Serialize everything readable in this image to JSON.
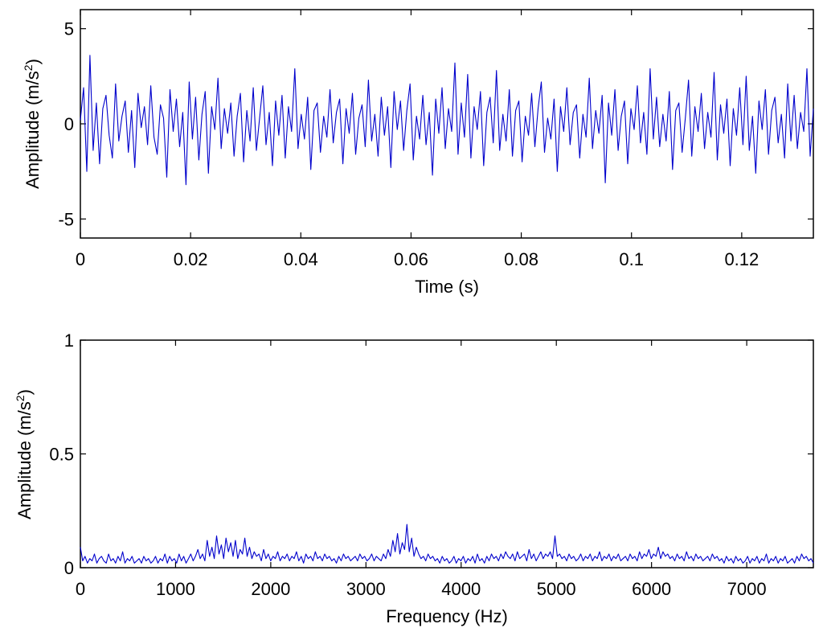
{
  "chart_data": [
    {
      "type": "line",
      "xlabel": "Time (s)",
      "ylabel": "Amplitude (m/s",
      "ylabel_sup": "2",
      "ylabel_end": ")",
      "xlim": [
        0,
        0.133
      ],
      "ylim": [
        -6,
        6
      ],
      "x_ticks": [
        0,
        0.02,
        0.04,
        0.06,
        0.08,
        0.1,
        0.12
      ],
      "x_tick_labels": [
        "0",
        "0.02",
        "0.04",
        "0.06",
        "0.08",
        "0.1",
        "0.12"
      ],
      "y_ticks": [
        -5,
        0,
        5
      ],
      "y_tick_labels": [
        "-5",
        "0",
        "5"
      ],
      "grid": false,
      "color": "#0000cc",
      "series": [
        {
          "x_start": 0,
          "x_end": 0.133,
          "values": [
            0.2,
            1.9,
            -2.5,
            3.6,
            -1.4,
            1.1,
            -2.1,
            0.8,
            1.5,
            -0.6,
            -1.8,
            2.1,
            -0.9,
            0.4,
            1.2,
            -1.5,
            0.7,
            -2.3,
            1.6,
            -0.2,
            0.9,
            -1.1,
            2.0,
            -0.7,
            -1.6,
            1.0,
            0.3,
            -2.8,
            1.8,
            -0.4,
            1.3,
            -1.2,
            0.6,
            -3.2,
            2.2,
            -0.8,
            1.4,
            -1.9,
            0.5,
            1.7,
            -2.6,
            0.9,
            -0.3,
            2.4,
            -1.3,
            0.8,
            -0.5,
            1.1,
            -1.7,
            0.4,
            1.6,
            -2.0,
            0.7,
            -0.9,
            1.9,
            -1.4,
            0.3,
            2.0,
            -1.1,
            0.6,
            -2.2,
            1.2,
            -0.6,
            1.5,
            -1.8,
            0.9,
            -0.4,
            2.9,
            -1.3,
            0.5,
            -0.8,
            1.4,
            -2.4,
            0.7,
            1.1,
            -1.5,
            0.4,
            -0.7,
            1.8,
            -1.0,
            0.6,
            1.3,
            -2.1,
            0.8,
            -0.5,
            1.6,
            -1.6,
            0.3,
            1.0,
            -1.2,
            2.3,
            -0.9,
            0.5,
            -1.7,
            1.4,
            -0.6,
            0.9,
            -2.3,
            1.7,
            -0.3,
            1.2,
            -1.4,
            0.7,
            2.1,
            -1.9,
            0.4,
            -0.8,
            1.5,
            -1.1,
            0.6,
            -2.7,
            1.3,
            -0.5,
            1.9,
            -1.3,
            0.8,
            -0.4,
            3.2,
            -1.6,
            1.1,
            -0.7,
            2.6,
            -1.8,
            0.9,
            -0.3,
            1.7,
            -2.2,
            0.6,
            1.4,
            -1.0,
            2.8,
            -1.4,
            0.5,
            -0.9,
            1.8,
            -1.7,
            0.7,
            1.2,
            -2.0,
            0.4,
            -0.6,
            1.6,
            -1.2,
            0.8,
            2.2,
            -1.5,
            0.3,
            -0.8,
            1.3,
            -2.5,
            0.9,
            -0.4,
            1.9,
            -1.1,
            0.6,
            1.0,
            -1.8,
            0.5,
            -0.7,
            2.4,
            -1.3,
            0.7,
            -0.5,
            1.5,
            -3.1,
            1.1,
            -0.6,
            1.8,
            -1.4,
            0.4,
            1.2,
            -2.1,
            0.8,
            -0.3,
            2.0,
            -1.0,
            0.6,
            -1.6,
            2.9,
            -0.8,
            1.4,
            -1.2,
            0.5,
            -0.9,
            1.7,
            -2.4,
            0.7,
            1.1,
            -1.5,
            0.3,
            2.3,
            -1.7,
            0.9,
            -0.4,
            1.6,
            -1.3,
            0.6,
            -0.7,
            2.7,
            -1.9,
            1.0,
            -0.5,
            1.3,
            -2.2,
            0.8,
            -0.6,
            1.9,
            -1.1,
            2.5,
            -1.4,
            0.4,
            -2.6,
            1.2,
            -0.3,
            1.8,
            -1.6,
            0.7,
            1.4,
            -1.0,
            0.5,
            -1.8,
            2.1,
            -0.9,
            1.5,
            -1.3,
            0.6,
            -0.4,
            2.9,
            -1.7,
            0.8
          ]
        }
      ]
    },
    {
      "type": "line",
      "xlabel": "Frequency (Hz)",
      "ylabel": "Amplitude (m/s",
      "ylabel_sup": "2",
      "ylabel_end": ")",
      "xlim": [
        0,
        7700
      ],
      "ylim": [
        0,
        1
      ],
      "x_ticks": [
        0,
        1000,
        2000,
        3000,
        4000,
        5000,
        6000,
        7000
      ],
      "x_tick_labels": [
        "0",
        "1000",
        "2000",
        "3000",
        "4000",
        "5000",
        "6000",
        "7000"
      ],
      "y_ticks": [
        0,
        0.5,
        1
      ],
      "y_tick_labels": [
        "0",
        "0.5",
        "1"
      ],
      "grid": false,
      "color": "#0000cc",
      "series": [
        {
          "x_start": 0,
          "x_end": 7700,
          "values": [
            0.09,
            0.03,
            0.05,
            0.02,
            0.04,
            0.03,
            0.06,
            0.02,
            0.04,
            0.05,
            0.03,
            0.02,
            0.06,
            0.03,
            0.04,
            0.02,
            0.05,
            0.03,
            0.07,
            0.02,
            0.04,
            0.03,
            0.05,
            0.02,
            0.03,
            0.04,
            0.02,
            0.05,
            0.03,
            0.04,
            0.02,
            0.03,
            0.05,
            0.02,
            0.04,
            0.03,
            0.06,
            0.02,
            0.05,
            0.03,
            0.04,
            0.02,
            0.06,
            0.03,
            0.05,
            0.02,
            0.04,
            0.06,
            0.03,
            0.05,
            0.08,
            0.04,
            0.06,
            0.03,
            0.12,
            0.05,
            0.09,
            0.04,
            0.14,
            0.06,
            0.1,
            0.04,
            0.13,
            0.07,
            0.11,
            0.05,
            0.12,
            0.04,
            0.08,
            0.06,
            0.13,
            0.05,
            0.09,
            0.04,
            0.07,
            0.05,
            0.06,
            0.03,
            0.08,
            0.04,
            0.06,
            0.03,
            0.05,
            0.04,
            0.07,
            0.03,
            0.05,
            0.04,
            0.06,
            0.03,
            0.05,
            0.04,
            0.07,
            0.03,
            0.05,
            0.02,
            0.06,
            0.04,
            0.05,
            0.03,
            0.07,
            0.04,
            0.05,
            0.03,
            0.06,
            0.04,
            0.05,
            0.03,
            0.04,
            0.02,
            0.05,
            0.03,
            0.06,
            0.04,
            0.05,
            0.03,
            0.04,
            0.05,
            0.03,
            0.06,
            0.04,
            0.05,
            0.03,
            0.04,
            0.06,
            0.03,
            0.05,
            0.04,
            0.03,
            0.06,
            0.04,
            0.08,
            0.05,
            0.12,
            0.07,
            0.15,
            0.06,
            0.11,
            0.08,
            0.19,
            0.07,
            0.13,
            0.05,
            0.09,
            0.06,
            0.04,
            0.05,
            0.03,
            0.06,
            0.04,
            0.05,
            0.03,
            0.04,
            0.02,
            0.05,
            0.03,
            0.04,
            0.02,
            0.03,
            0.05,
            0.02,
            0.04,
            0.03,
            0.05,
            0.02,
            0.04,
            0.03,
            0.05,
            0.02,
            0.06,
            0.03,
            0.04,
            0.02,
            0.05,
            0.03,
            0.06,
            0.04,
            0.05,
            0.03,
            0.06,
            0.04,
            0.07,
            0.05,
            0.04,
            0.06,
            0.03,
            0.07,
            0.04,
            0.05,
            0.06,
            0.03,
            0.08,
            0.04,
            0.06,
            0.03,
            0.05,
            0.07,
            0.04,
            0.06,
            0.05,
            0.07,
            0.04,
            0.14,
            0.05,
            0.06,
            0.04,
            0.05,
            0.03,
            0.06,
            0.04,
            0.05,
            0.03,
            0.04,
            0.06,
            0.03,
            0.05,
            0.04,
            0.06,
            0.03,
            0.05,
            0.04,
            0.07,
            0.03,
            0.05,
            0.04,
            0.06,
            0.03,
            0.05,
            0.04,
            0.06,
            0.03,
            0.04,
            0.05,
            0.03,
            0.06,
            0.04,
            0.05,
            0.03,
            0.07,
            0.04,
            0.06,
            0.05,
            0.08,
            0.04,
            0.06,
            0.05,
            0.09,
            0.04,
            0.07,
            0.05,
            0.06,
            0.04,
            0.05,
            0.03,
            0.06,
            0.04,
            0.05,
            0.03,
            0.07,
            0.04,
            0.05,
            0.03,
            0.06,
            0.04,
            0.05,
            0.03,
            0.04,
            0.05,
            0.03,
            0.06,
            0.04,
            0.05,
            0.03,
            0.04,
            0.02,
            0.05,
            0.03,
            0.04,
            0.02,
            0.05,
            0.03,
            0.04,
            0.02,
            0.03,
            0.05,
            0.02,
            0.04,
            0.03,
            0.05,
            0.02,
            0.04,
            0.03,
            0.06,
            0.02,
            0.04,
            0.03,
            0.05,
            0.02,
            0.04,
            0.03,
            0.05,
            0.02,
            0.03,
            0.04,
            0.02,
            0.05,
            0.03,
            0.06,
            0.04,
            0.05,
            0.03,
            0.04,
            0.02
          ]
        }
      ]
    }
  ]
}
